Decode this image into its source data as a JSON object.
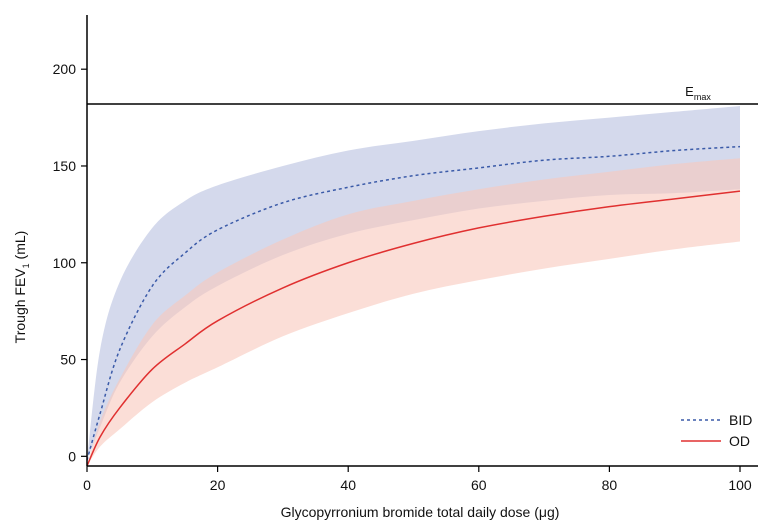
{
  "chart_data": {
    "type": "line",
    "title": "",
    "xlabel": "Glycopyrronium bromide total daily dose (μg)",
    "ylabel_main": "Trough FEV",
    "ylabel_sub": "1",
    "ylabel_unit": " (mL)",
    "xlim": [
      0,
      100
    ],
    "ylim": [
      -5,
      228
    ],
    "x_ticks": [
      0,
      20,
      40,
      60,
      80,
      100
    ],
    "y_ticks": [
      0,
      50,
      100,
      150,
      200
    ],
    "grid": false,
    "legend_position": "bottom-right",
    "reference_line": {
      "y": 182,
      "label_main": "E",
      "label_sub": "max"
    },
    "series": [
      {
        "name": "BID",
        "style": "dotted",
        "color": "#3a5aa8",
        "band_color": "#b8c0e0",
        "x": [
          0,
          2,
          5,
          10,
          15,
          20,
          30,
          40,
          50,
          60,
          70,
          80,
          90,
          100
        ],
        "y": [
          -2,
          22,
          55,
          88,
          105,
          117,
          131,
          139,
          145,
          149,
          153,
          155,
          158,
          160
        ],
        "lower": [
          -2,
          15,
          38,
          62,
          77,
          88,
          104,
          115,
          122,
          128,
          132,
          135,
          136,
          138
        ],
        "upper": [
          -2,
          55,
          90,
          118,
          132,
          140,
          150,
          158,
          163,
          168,
          172,
          175,
          178,
          181
        ]
      },
      {
        "name": "OD",
        "style": "solid",
        "color": "#e03030",
        "band_color": "#f8c8bc",
        "x": [
          0,
          2,
          5,
          10,
          15,
          20,
          30,
          40,
          50,
          60,
          70,
          80,
          90,
          100
        ],
        "y": [
          -5,
          10,
          25,
          45,
          58,
          70,
          87,
          100,
          110,
          118,
          124,
          129,
          133,
          137
        ],
        "lower": [
          -5,
          5,
          14,
          28,
          38,
          46,
          62,
          74,
          84,
          91,
          97,
          102,
          107,
          111
        ],
        "upper": [
          -5,
          18,
          40,
          68,
          83,
          95,
          112,
          125,
          132,
          138,
          143,
          147,
          151,
          154
        ]
      }
    ]
  }
}
